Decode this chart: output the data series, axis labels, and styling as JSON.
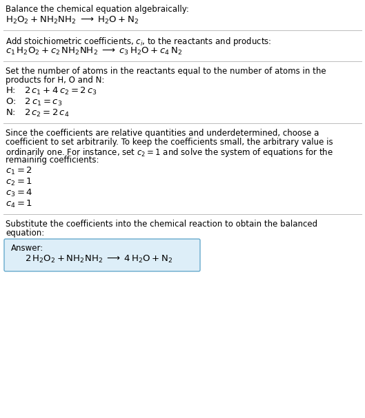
{
  "bg_color": "#ffffff",
  "text_color": "#000000",
  "divider_color": "#bbbbbb",
  "answer_box_color": "#ddeef8",
  "answer_box_border": "#66aacc",
  "section1_title": "Balance the chemical equation algebraically:",
  "section1_eq": "$\\mathrm{H_2O_2 + NH_2NH_2 \\;\\longrightarrow\\; H_2O + N_2}$",
  "section2_title": "Add stoichiometric coefficients, $c_i$, to the reactants and products:",
  "section2_eq": "$c_1\\,\\mathrm{H_2O_2} + c_2\\,\\mathrm{NH_2NH_2} \\;\\longrightarrow\\; c_3\\,\\mathrm{H_2O} + c_4\\,\\mathrm{N_2}$",
  "section3_title_line1": "Set the number of atoms in the reactants equal to the number of atoms in the",
  "section3_title_line2": "products for H, O and N:",
  "section3_h": "H:   $2\\,c_1 + 4\\,c_2 = 2\\,c_3$",
  "section3_o": "O:   $2\\,c_1 = c_3$",
  "section3_n": "N:   $2\\,c_2 = 2\\,c_4$",
  "section4_line1": "Since the coefficients are relative quantities and underdetermined, choose a",
  "section4_line2": "coefficient to set arbitrarily. To keep the coefficients small, the arbitrary value is",
  "section4_line3": "ordinarily one. For instance, set $c_2 = 1$ and solve the system of equations for the",
  "section4_line4": "remaining coefficients:",
  "section4_c1": "$c_1 = 2$",
  "section4_c2": "$c_2 = 1$",
  "section4_c3": "$c_3 = 4$",
  "section4_c4": "$c_4 = 1$",
  "section5_line1": "Substitute the coefficients into the chemical reaction to obtain the balanced",
  "section5_line2": "equation:",
  "answer_label": "Answer:",
  "answer_eq": "$2\\,\\mathrm{H_2O_2} + \\mathrm{NH_2NH_2} \\;\\longrightarrow\\; 4\\,\\mathrm{H_2O} + \\mathrm{N_2}$"
}
